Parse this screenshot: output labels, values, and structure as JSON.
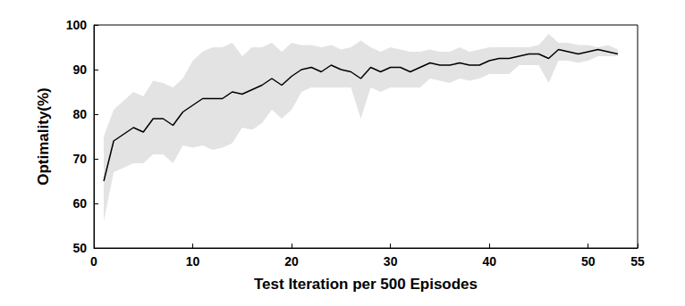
{
  "chart_data": {
    "type": "line",
    "x_label": "Test Iteration per 500 Episodes",
    "y_label": "Optimality(%)",
    "x": [
      1,
      2,
      3,
      4,
      5,
      6,
      7,
      8,
      9,
      10,
      11,
      12,
      13,
      14,
      15,
      16,
      17,
      18,
      19,
      20,
      21,
      22,
      23,
      24,
      25,
      26,
      27,
      28,
      29,
      30,
      31,
      32,
      33,
      34,
      35,
      36,
      37,
      38,
      39,
      40,
      41,
      42,
      43,
      44,
      45,
      46,
      47,
      48,
      49,
      50,
      51,
      52,
      53
    ],
    "values": [
      65,
      74,
      75.5,
      77,
      76,
      79,
      79,
      77.5,
      80.5,
      82,
      83.5,
      83.5,
      83.5,
      85,
      84.5,
      85.5,
      86.5,
      88,
      86.5,
      88.5,
      90,
      90.5,
      89.5,
      91,
      90,
      89.5,
      88,
      90.5,
      89.5,
      90.5,
      90.5,
      89.5,
      90.5,
      91.5,
      91,
      91,
      91.5,
      91,
      91,
      92,
      92.5,
      92.5,
      93,
      93.5,
      93.5,
      92.5,
      94.5,
      94,
      93.5,
      94,
      94.5,
      94,
      93.5
    ],
    "lower": [
      56,
      67,
      68,
      69,
      69,
      71,
      71,
      69,
      73,
      72.5,
      73,
      72,
      72.5,
      73.5,
      77,
      76.5,
      78,
      81,
      79,
      81,
      85,
      86,
      86,
      86,
      86,
      86,
      79,
      86,
      85,
      86,
      86,
      86,
      86,
      88,
      87.5,
      87,
      88,
      87.5,
      88,
      89,
      89,
      89,
      91,
      91,
      91,
      87,
      92,
      92,
      91.5,
      92,
      93,
      93,
      93
    ],
    "upper": [
      75,
      81,
      83,
      85,
      84,
      87.5,
      87,
      86,
      88,
      92,
      94,
      95,
      95,
      96,
      93,
      95,
      95,
      96,
      94,
      96,
      95.5,
      95.5,
      95,
      95.5,
      94.5,
      95,
      96.5,
      95,
      94,
      95,
      94.5,
      94,
      94,
      94.5,
      94,
      94,
      95,
      94,
      94.5,
      95,
      95,
      95,
      95,
      95,
      95.5,
      98,
      96,
      96,
      95.5,
      95.5,
      95,
      95.5,
      94.5
    ],
    "color": "#000000",
    "band_color": "#e3e3e3",
    "xlim": [
      0,
      55
    ],
    "xticks": [
      0,
      10,
      20,
      30,
      40,
      50
    ],
    "ylim": [
      50,
      100
    ],
    "yticks": [
      50,
      60,
      70,
      80,
      90,
      100
    ],
    "grid": false
  }
}
